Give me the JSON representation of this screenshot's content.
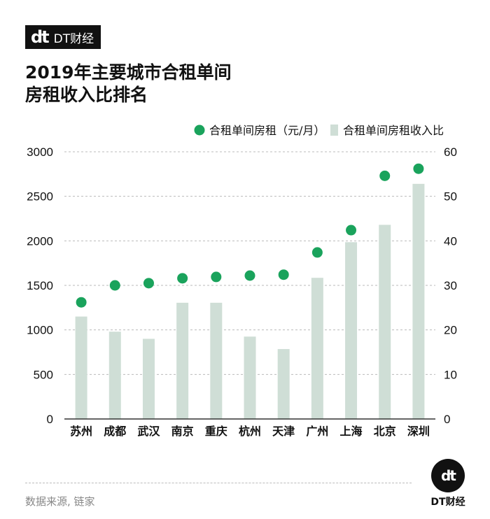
{
  "brand": {
    "logo_mark": "dt",
    "logo_text": "DT财经"
  },
  "title_lines": [
    "2019年主要城市合租单间",
    "房租收入比排名"
  ],
  "source": "数据来源, 链家",
  "colors": {
    "bar": "#cfded6",
    "dot": "#1aa35c",
    "grid": "#bbbbbb"
  },
  "chart_data": {
    "type": "bar",
    "categories": [
      "苏州",
      "成都",
      "武汉",
      "南京",
      "重庆",
      "杭州",
      "天津",
      "广州",
      "上海",
      "北京",
      "深圳"
    ],
    "series": [
      {
        "name": "合租单间房租收入比",
        "type": "bar",
        "axis": "right",
        "values": [
          23,
          19.6,
          18,
          26.1,
          26.1,
          18.5,
          15.7,
          31.7,
          39.7,
          43.6,
          52.8
        ]
      },
      {
        "name": "合租单间房租（元/月）",
        "type": "scatter",
        "axis": "left",
        "values": [
          1310,
          1500,
          1525,
          1580,
          1595,
          1610,
          1620,
          1870,
          2120,
          2730,
          2810
        ]
      }
    ],
    "y_left": {
      "min": 0,
      "max": 3000,
      "ticks": [
        "0",
        "500",
        "1000",
        "1500",
        "2000",
        "2500",
        "3000"
      ]
    },
    "y_right": {
      "min": 0,
      "max": 60,
      "ticks": [
        "0",
        "10",
        "20",
        "30",
        "40",
        "50",
        "60"
      ]
    },
    "grid": true,
    "legend_position": "top-right"
  }
}
